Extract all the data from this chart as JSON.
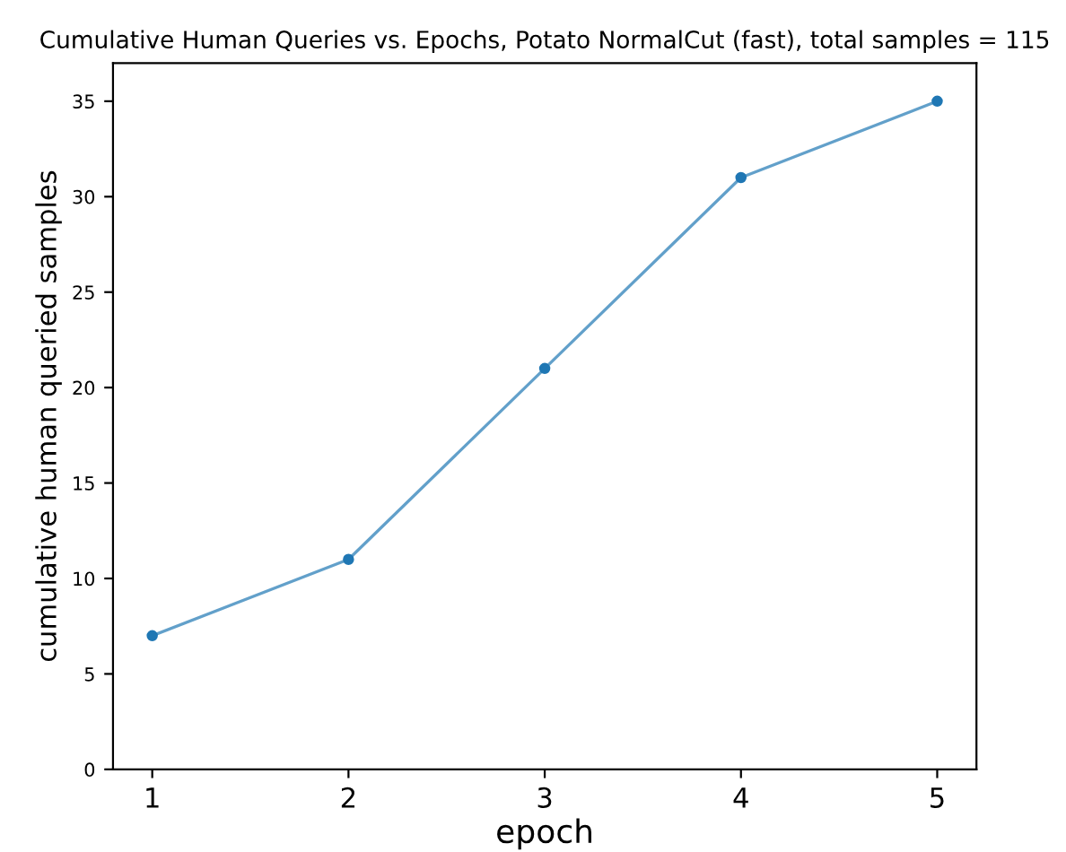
{
  "chart_data": {
    "type": "line",
    "title": "Cumulative Human Queries vs. Epochs, Potato NormalCut (fast), total samples = 115",
    "xlabel": "epoch",
    "ylabel": "cumulative human queried samples",
    "x": [
      1,
      2,
      3,
      4,
      5
    ],
    "series": [
      {
        "color": "#1f77b4",
        "values": [
          7,
          11,
          21,
          31,
          35
        ]
      }
    ],
    "xlim": [
      0.8,
      5.2
    ],
    "xticks": [
      1,
      2,
      3,
      4,
      5
    ],
    "ylim": [
      0,
      37
    ],
    "yticks": [
      0,
      5,
      10,
      15,
      20,
      25,
      30,
      35
    ],
    "grid": false,
    "marker": "circle",
    "line_style": "solid"
  }
}
